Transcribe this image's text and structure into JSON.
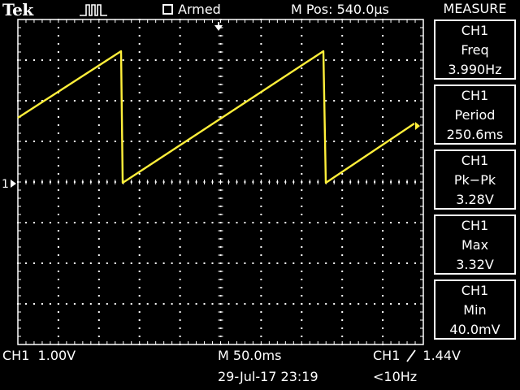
{
  "header": {
    "brand": "Tek",
    "trigger_status": "Armed",
    "position": "M Pos: 540.0µs"
  },
  "measure": {
    "title": "MEASURE",
    "items": [
      {
        "channel": "CH1",
        "type": "Freq",
        "value": "3.990Hz"
      },
      {
        "channel": "CH1",
        "type": "Period",
        "value": "250.6ms"
      },
      {
        "channel": "CH1",
        "type": "Pk−Pk",
        "value": "3.28V"
      },
      {
        "channel": "CH1",
        "type": "Max",
        "value": "3.32V"
      },
      {
        "channel": "CH1",
        "type": "Min",
        "value": "40.0mV"
      }
    ]
  },
  "footer": {
    "ch1_scale": "CH1  1.00V",
    "timebase": "M 50.0ms",
    "trigger_source": "CH1",
    "trigger_level": "1.44V",
    "datetime": "29-Jul-17 23:19",
    "trigger_freq": "<10Hz"
  },
  "channel_marker": "1",
  "colors": {
    "trace": "#ffef3a",
    "grid": "#ffffff",
    "background": "#000000"
  }
}
